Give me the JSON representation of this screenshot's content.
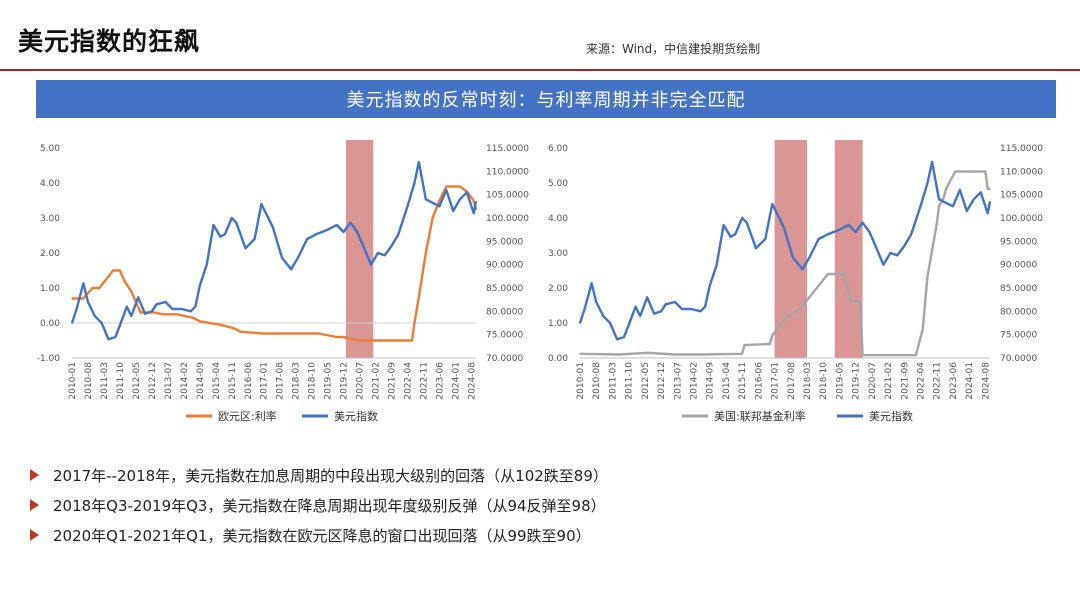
{
  "page": {
    "title": "美元指数的狂飙",
    "source": "来源：Wind，中信建投期货绘制",
    "banner": "美元指数的反常时刻：与利率周期并非完全匹配",
    "colors": {
      "accent_red": "#b22222",
      "banner_blue": "#4472c4",
      "arrow": "#c0392b"
    }
  },
  "bullets": [
    "2017年--2018年，美元指数在加息周期的中段出现大级别的回落（从102跌至89）",
    "2018年Q3-2019年Q3，美元指数在降息周期出现年度级别反弹（从94反弹至98）",
    "2020年Q1-2021年Q1，美元指数在欧元区降息的窗口出现回落（从99跌至90）"
  ],
  "chart_data": [
    {
      "type": "line",
      "x_tick_labels": [
        "2010-01",
        "2010-08",
        "2011-03",
        "2011-10",
        "2012-05",
        "2012-12",
        "2013-07",
        "2014-02",
        "2014-09",
        "2015-04",
        "2015-11",
        "2016-06",
        "2017-01",
        "2017-08",
        "2018-03",
        "2018-10",
        "2019-05",
        "2019-12",
        "2020-07",
        "2021-02",
        "2021-09",
        "2022-04",
        "2022-11",
        "2023-06",
        "2024-01",
        "2024-08"
      ],
      "y_left": {
        "range": [
          -1,
          5
        ],
        "tick_labels": [
          "-1.00",
          "0.00",
          "1.00",
          "2.00",
          "3.00",
          "4.00",
          "5.00"
        ]
      },
      "y_right": {
        "range": [
          70,
          115
        ],
        "tick_labels": [
          "70.0000",
          "75.0000",
          "80.0000",
          "85.0000",
          "90.0000",
          "95.0000",
          "100.0000",
          "105.0000",
          "110.0000",
          "115.0000"
        ]
      },
      "shaded_periods": [
        {
          "start": "2020-01",
          "end": "2021-01",
          "color": "#c0504d"
        }
      ],
      "series": [
        {
          "name": "欧元区:利率",
          "axis": "left",
          "color": "#ed7d31",
          "points": [
            [
              "2010-01",
              0.7
            ],
            [
              "2010-06",
              0.7
            ],
            [
              "2010-10",
              1.0
            ],
            [
              "2011-01",
              1.0
            ],
            [
              "2011-04",
              1.25
            ],
            [
              "2011-07",
              1.5
            ],
            [
              "2011-10",
              1.5
            ],
            [
              "2011-12",
              1.2
            ],
            [
              "2012-03",
              0.9
            ],
            [
              "2012-07",
              0.3
            ],
            [
              "2013-01",
              0.3
            ],
            [
              "2013-05",
              0.25
            ],
            [
              "2013-11",
              0.25
            ],
            [
              "2014-06",
              0.15
            ],
            [
              "2014-09",
              0.05
            ],
            [
              "2015-06",
              -0.05
            ],
            [
              "2015-12",
              -0.15
            ],
            [
              "2016-03",
              -0.25
            ],
            [
              "2017-01",
              -0.3
            ],
            [
              "2018-01",
              -0.3
            ],
            [
              "2019-01",
              -0.3
            ],
            [
              "2019-09",
              -0.4
            ],
            [
              "2019-12",
              -0.4
            ],
            [
              "2020-03",
              -0.45
            ],
            [
              "2020-07",
              -0.5
            ],
            [
              "2021-06",
              -0.5
            ],
            [
              "2022-06",
              -0.5
            ],
            [
              "2022-07",
              0.0
            ],
            [
              "2022-09",
              0.75
            ],
            [
              "2022-12",
              2.0
            ],
            [
              "2023-03",
              3.0
            ],
            [
              "2023-06",
              3.5
            ],
            [
              "2023-09",
              3.9
            ],
            [
              "2024-03",
              3.9
            ],
            [
              "2024-06",
              3.75
            ],
            [
              "2024-09",
              3.5
            ],
            [
              "2024-10",
              3.25
            ]
          ]
        },
        {
          "name": "美元指数",
          "axis": "right",
          "color": "#4472c4",
          "points": [
            [
              "2010-01",
              77.5
            ],
            [
              "2010-03",
              80.5
            ],
            [
              "2010-06",
              86.0
            ],
            [
              "2010-08",
              82.0
            ],
            [
              "2010-11",
              79.0
            ],
            [
              "2011-02",
              77.5
            ],
            [
              "2011-05",
              74.0
            ],
            [
              "2011-08",
              74.5
            ],
            [
              "2011-10",
              77.0
            ],
            [
              "2012-01",
              81.0
            ],
            [
              "2012-03",
              79.0
            ],
            [
              "2012-06",
              83.0
            ],
            [
              "2012-09",
              79.5
            ],
            [
              "2012-12",
              80.0
            ],
            [
              "2013-02",
              81.5
            ],
            [
              "2013-06",
              82.0
            ],
            [
              "2013-09",
              80.5
            ],
            [
              "2014-01",
              80.5
            ],
            [
              "2014-05",
              80.0
            ],
            [
              "2014-07",
              81.0
            ],
            [
              "2014-09",
              85.5
            ],
            [
              "2014-12",
              90.0
            ],
            [
              "2015-03",
              98.5
            ],
            [
              "2015-06",
              96.0
            ],
            [
              "2015-08",
              96.5
            ],
            [
              "2015-11",
              100.0
            ],
            [
              "2016-01",
              99.0
            ],
            [
              "2016-05",
              93.5
            ],
            [
              "2016-09",
              95.5
            ],
            [
              "2016-12",
              103.0
            ],
            [
              "2017-01",
              102.0
            ],
            [
              "2017-05",
              98.0
            ],
            [
              "2017-09",
              91.5
            ],
            [
              "2018-01",
              89.0
            ],
            [
              "2018-04",
              91.5
            ],
            [
              "2018-08",
              95.5
            ],
            [
              "2018-12",
              96.5
            ],
            [
              "2019-05",
              97.5
            ],
            [
              "2019-09",
              98.5
            ],
            [
              "2019-12",
              97.0
            ],
            [
              "2020-03",
              99.0
            ],
            [
              "2020-06",
              97.0
            ],
            [
              "2020-09",
              93.5
            ],
            [
              "2020-12",
              90.0
            ],
            [
              "2021-03",
              92.5
            ],
            [
              "2021-06",
              92.0
            ],
            [
              "2021-09",
              94.0
            ],
            [
              "2021-12",
              96.5
            ],
            [
              "2022-04",
              102.5
            ],
            [
              "2022-07",
              107.5
            ],
            [
              "2022-09",
              112.0
            ],
            [
              "2022-12",
              104.0
            ],
            [
              "2023-02",
              103.5
            ],
            [
              "2023-06",
              102.5
            ],
            [
              "2023-09",
              106.0
            ],
            [
              "2023-12",
              101.5
            ],
            [
              "2024-03",
              104.0
            ],
            [
              "2024-06",
              105.5
            ],
            [
              "2024-09",
              101.0
            ],
            [
              "2024-10",
              103.5
            ]
          ]
        }
      ],
      "legend": {
        "position": "bottom",
        "items": [
          "欧元区:利率",
          "美元指数"
        ]
      }
    },
    {
      "type": "line",
      "x_tick_labels": [
        "2010-01",
        "2010-08",
        "2011-03",
        "2011-10",
        "2012-05",
        "2012-12",
        "2013-07",
        "2014-02",
        "2014-09",
        "2015-04",
        "2015-11",
        "2016-06",
        "2017-01",
        "2017-08",
        "2018-03",
        "2018-10",
        "2019-05",
        "2019-12",
        "2020-07",
        "2021-02",
        "2021-09",
        "2022-04",
        "2022-11",
        "2023-06",
        "2024-01",
        "2024-08"
      ],
      "y_left": {
        "range": [
          0,
          6
        ],
        "tick_labels": [
          "0.00",
          "1.00",
          "2.00",
          "3.00",
          "4.00",
          "5.00",
          "6.00"
        ]
      },
      "y_right": {
        "range": [
          70,
          115
        ],
        "tick_labels": [
          "70.0000",
          "75.0000",
          "80.0000",
          "85.0000",
          "90.0000",
          "95.0000",
          "100.0000",
          "105.0000",
          "110.0000",
          "115.0000"
        ]
      },
      "shaded_periods": [
        {
          "start": "2017-01",
          "end": "2018-03",
          "color": "#c0504d"
        },
        {
          "start": "2019-03",
          "end": "2020-03",
          "color": "#c0504d"
        }
      ],
      "series": [
        {
          "name": "美国:联邦基金利率",
          "axis": "left",
          "color": "#a5a5a5",
          "points": [
            [
              "2010-01",
              0.12
            ],
            [
              "2011-06",
              0.1
            ],
            [
              "2012-06",
              0.15
            ],
            [
              "2013-06",
              0.1
            ],
            [
              "2014-06",
              0.1
            ],
            [
              "2015-11",
              0.12
            ],
            [
              "2015-12",
              0.37
            ],
            [
              "2016-11",
              0.4
            ],
            [
              "2016-12",
              0.65
            ],
            [
              "2017-03",
              0.9
            ],
            [
              "2017-06",
              1.15
            ],
            [
              "2017-12",
              1.4
            ],
            [
              "2018-03",
              1.65
            ],
            [
              "2018-06",
              1.9
            ],
            [
              "2018-09",
              2.15
            ],
            [
              "2018-12",
              2.4
            ],
            [
              "2019-07",
              2.4
            ],
            [
              "2019-08",
              2.15
            ],
            [
              "2019-09",
              1.9
            ],
            [
              "2019-10",
              1.65
            ],
            [
              "2020-02",
              1.6
            ],
            [
              "2020-03",
              0.08
            ],
            [
              "2021-06",
              0.08
            ],
            [
              "2022-02",
              0.08
            ],
            [
              "2022-03",
              0.33
            ],
            [
              "2022-05",
              0.83
            ],
            [
              "2022-06",
              1.58
            ],
            [
              "2022-07",
              2.33
            ],
            [
              "2022-09",
              3.08
            ],
            [
              "2022-11",
              3.83
            ],
            [
              "2022-12",
              4.33
            ],
            [
              "2023-02",
              4.58
            ],
            [
              "2023-03",
              4.83
            ],
            [
              "2023-05",
              5.08
            ],
            [
              "2023-07",
              5.33
            ],
            [
              "2024-08",
              5.33
            ],
            [
              "2024-09",
              4.83
            ],
            [
              "2024-10",
              4.83
            ]
          ]
        },
        {
          "name": "美元指数",
          "axis": "right",
          "color": "#4472c4",
          "points": [
            [
              "2010-01",
              77.5
            ],
            [
              "2010-03",
              80.5
            ],
            [
              "2010-06",
              86.0
            ],
            [
              "2010-08",
              82.0
            ],
            [
              "2010-11",
              79.0
            ],
            [
              "2011-02",
              77.5
            ],
            [
              "2011-05",
              74.0
            ],
            [
              "2011-08",
              74.5
            ],
            [
              "2011-10",
              77.0
            ],
            [
              "2012-01",
              81.0
            ],
            [
              "2012-03",
              79.0
            ],
            [
              "2012-06",
              83.0
            ],
            [
              "2012-09",
              79.5
            ],
            [
              "2012-12",
              80.0
            ],
            [
              "2013-02",
              81.5
            ],
            [
              "2013-06",
              82.0
            ],
            [
              "2013-09",
              80.5
            ],
            [
              "2014-01",
              80.5
            ],
            [
              "2014-05",
              80.0
            ],
            [
              "2014-07",
              81.0
            ],
            [
              "2014-09",
              85.5
            ],
            [
              "2014-12",
              90.0
            ],
            [
              "2015-03",
              98.5
            ],
            [
              "2015-06",
              96.0
            ],
            [
              "2015-08",
              96.5
            ],
            [
              "2015-11",
              100.0
            ],
            [
              "2016-01",
              99.0
            ],
            [
              "2016-05",
              93.5
            ],
            [
              "2016-09",
              95.5
            ],
            [
              "2016-12",
              103.0
            ],
            [
              "2017-01",
              102.0
            ],
            [
              "2017-05",
              98.0
            ],
            [
              "2017-09",
              91.5
            ],
            [
              "2018-01",
              89.0
            ],
            [
              "2018-04",
              91.5
            ],
            [
              "2018-08",
              95.5
            ],
            [
              "2018-12",
              96.5
            ],
            [
              "2019-05",
              97.5
            ],
            [
              "2019-09",
              98.5
            ],
            [
              "2019-12",
              97.0
            ],
            [
              "2020-03",
              99.0
            ],
            [
              "2020-06",
              97.0
            ],
            [
              "2020-09",
              93.5
            ],
            [
              "2020-12",
              90.0
            ],
            [
              "2021-03",
              92.5
            ],
            [
              "2021-06",
              92.0
            ],
            [
              "2021-09",
              94.0
            ],
            [
              "2021-12",
              96.5
            ],
            [
              "2022-04",
              102.5
            ],
            [
              "2022-07",
              107.5
            ],
            [
              "2022-09",
              112.0
            ],
            [
              "2022-12",
              104.0
            ],
            [
              "2023-02",
              103.5
            ],
            [
              "2023-06",
              102.5
            ],
            [
              "2023-09",
              106.0
            ],
            [
              "2023-12",
              101.5
            ],
            [
              "2024-03",
              104.0
            ],
            [
              "2024-06",
              105.5
            ],
            [
              "2024-09",
              101.0
            ],
            [
              "2024-10",
              103.5
            ]
          ]
        }
      ],
      "legend": {
        "position": "bottom",
        "items": [
          "美国:联邦基金利率",
          "美元指数"
        ]
      }
    }
  ]
}
